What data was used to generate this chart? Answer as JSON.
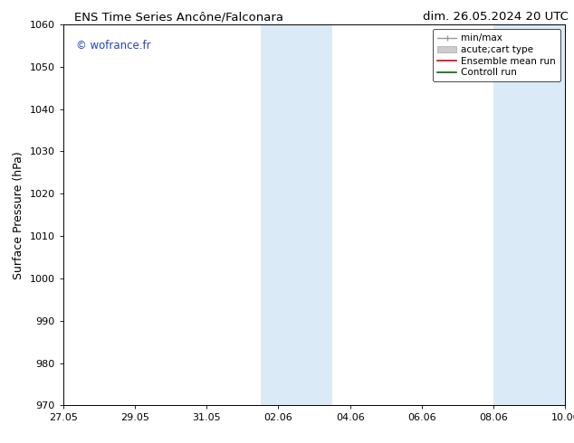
{
  "title_left": "ENS Time Series Ancône/Falconara",
  "title_right": "dim. 26.05.2024 20 UTC",
  "ylabel": "Surface Pressure (hPa)",
  "ylim": [
    970,
    1060
  ],
  "yticks": [
    970,
    980,
    990,
    1000,
    1010,
    1020,
    1030,
    1040,
    1050,
    1060
  ],
  "xtick_labels": [
    "27.05",
    "29.05",
    "31.05",
    "02.06",
    "04.06",
    "06.06",
    "08.06",
    "10.06"
  ],
  "xtick_positions": [
    0,
    2,
    4,
    6,
    8,
    10,
    12,
    14
  ],
  "x_min": 0,
  "x_max": 14,
  "shaded_bands": [
    {
      "xstart": 5.5,
      "xend": 7.5,
      "color": "#daeaf7"
    },
    {
      "xstart": 12.0,
      "xend": 14.0,
      "color": "#daeaf7"
    }
  ],
  "watermark": "© wofrance.fr",
  "watermark_color": "#2244bb",
  "bg_color": "#ffffff",
  "grid_color": "#bbbbbb",
  "title_fontsize": 9.5,
  "tick_fontsize": 8,
  "ylabel_fontsize": 9
}
